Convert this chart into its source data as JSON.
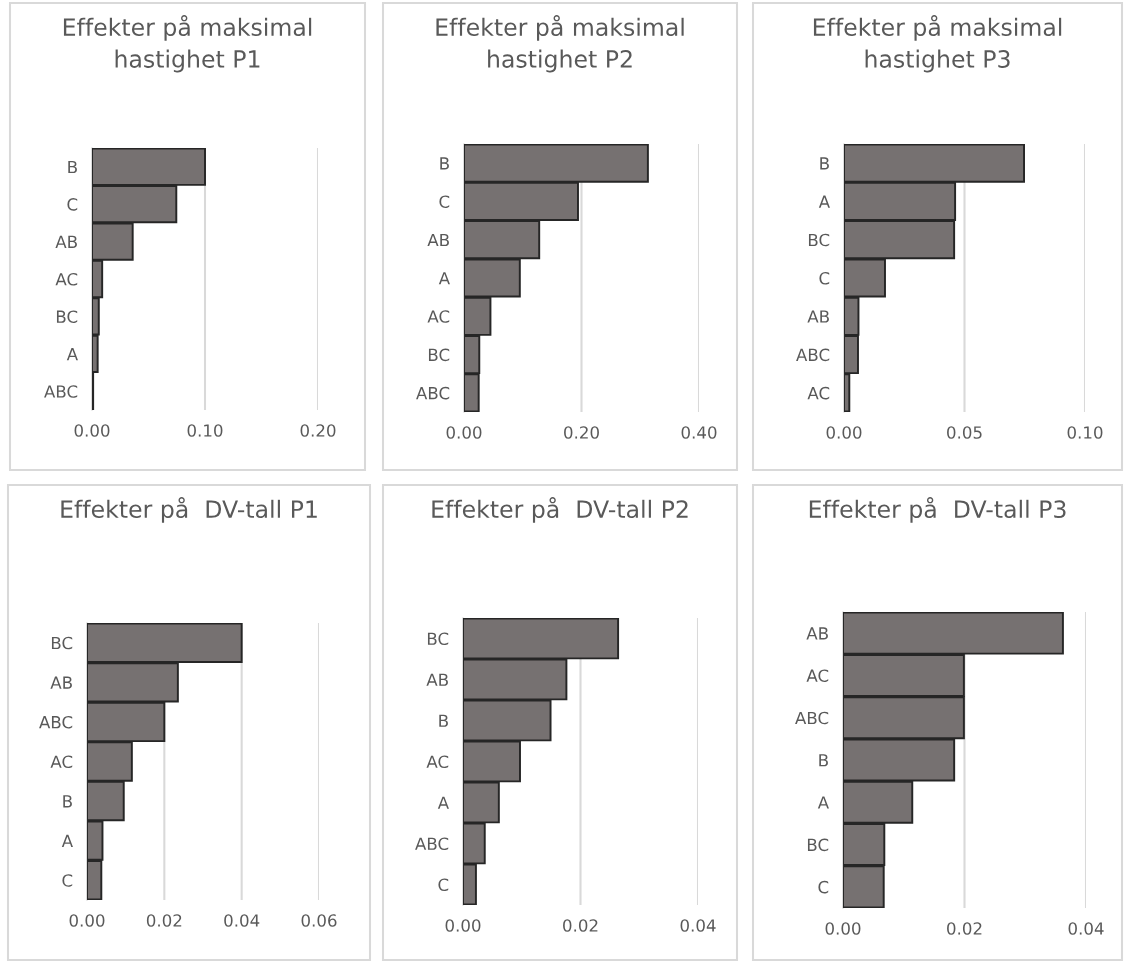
{
  "chart_data": [
    {
      "type": "bar",
      "orientation": "horizontal",
      "title": "Effekter på maksimal hastighet P1",
      "categories": [
        "B",
        "C",
        "AB",
        "AC",
        "BC",
        "A",
        "ABC"
      ],
      "values": [
        0.1,
        0.0746,
        0.036,
        0.009,
        0.006,
        0.005,
        0.001
      ],
      "color": "#767171",
      "xlim": [
        0,
        0.2
      ],
      "xticks": [
        {
          "value": 0,
          "label": "0.00"
        },
        {
          "value": 0.1,
          "label": "0.10"
        },
        {
          "value": 0.2,
          "label": "0.20"
        }
      ],
      "grid": "x"
    },
    {
      "type": "bar",
      "orientation": "horizontal",
      "title": "Effekter på maksimal hastighet P2",
      "categories": [
        "B",
        "C",
        "AB",
        "A",
        "AC",
        "BC",
        "ABC"
      ],
      "values": [
        0.313,
        0.194,
        0.128,
        0.095,
        0.045,
        0.026,
        0.025
      ],
      "color": "#767171",
      "xlim": [
        0,
        0.4
      ],
      "xticks": [
        {
          "value": 0,
          "label": "0.00"
        },
        {
          "value": 0.2,
          "label": "0.20"
        },
        {
          "value": 0.4,
          "label": "0.40"
        }
      ],
      "grid": "x"
    },
    {
      "type": "bar",
      "orientation": "horizontal",
      "title": "Effekter på maksimal hastighet P3",
      "categories": [
        "B",
        "A",
        "BC",
        "C",
        "AB",
        "ABC",
        "AC"
      ],
      "values": [
        0.0747,
        0.0461,
        0.0457,
        0.017,
        0.006,
        0.0058,
        0.0022
      ],
      "color": "#767171",
      "xlim": [
        0,
        0.1
      ],
      "xticks": [
        {
          "value": 0,
          "label": "0.00"
        },
        {
          "value": 0.05,
          "label": "0.05"
        },
        {
          "value": 0.1,
          "label": "0.10"
        }
      ],
      "grid": "x"
    },
    {
      "type": "bar",
      "orientation": "horizontal",
      "title": "Effekter på  DV-tall P1",
      "categories": [
        "BC",
        "AB",
        "ABC",
        "AC",
        "B",
        "A",
        "C"
      ],
      "values": [
        0.04,
        0.0235,
        0.02,
        0.0116,
        0.0095,
        0.004,
        0.0037
      ],
      "color": "#767171",
      "xlim": [
        0,
        0.06
      ],
      "xticks": [
        {
          "value": 0,
          "label": "0.00"
        },
        {
          "value": 0.02,
          "label": "0.02"
        },
        {
          "value": 0.04,
          "label": "0.04"
        },
        {
          "value": 0.06,
          "label": "0.06"
        }
      ],
      "grid": "x"
    },
    {
      "type": "bar",
      "orientation": "horizontal",
      "title": "Effekter på  DV-tall P2",
      "categories": [
        "BC",
        "AB",
        "B",
        "AC",
        "A",
        "ABC",
        "C"
      ],
      "values": [
        0.0264,
        0.0176,
        0.0149,
        0.0097,
        0.0061,
        0.0037,
        0.0022
      ],
      "color": "#767171",
      "xlim": [
        0,
        0.04
      ],
      "xticks": [
        {
          "value": 0,
          "label": "0.00"
        },
        {
          "value": 0.02,
          "label": "0.02"
        },
        {
          "value": 0.04,
          "label": "0.04"
        }
      ],
      "grid": "x"
    },
    {
      "type": "bar",
      "orientation": "horizontal",
      "title": "Effekter på  DV-tall P3",
      "categories": [
        "AB",
        "AC",
        "ABC",
        "B",
        "A",
        "BC",
        "C"
      ],
      "values": [
        0.0362,
        0.0199,
        0.0199,
        0.0183,
        0.0114,
        0.0068,
        0.0067
      ],
      "color": "#767171",
      "xlim": [
        0,
        0.04
      ],
      "xticks": [
        {
          "value": 0,
          "label": "0.00"
        },
        {
          "value": 0.02,
          "label": "0.02"
        },
        {
          "value": 0.04,
          "label": "0.04"
        }
      ],
      "grid": "x"
    }
  ]
}
